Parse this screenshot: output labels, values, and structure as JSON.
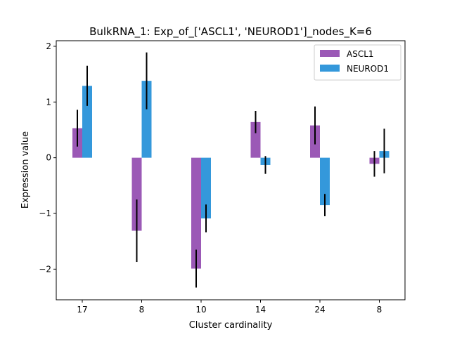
{
  "chart_data": {
    "type": "bar",
    "title": "BulkRNA_1: Exp_of_['ASCL1', 'NEUROD1']_nodes_K=6",
    "xlabel": "Cluster cardinality",
    "ylabel": "Expression value",
    "categories": [
      "17",
      "8",
      "10",
      "14",
      "24",
      "8"
    ],
    "ylim": [
      -2.55,
      2.1
    ],
    "yticks": [
      -2,
      -1,
      0,
      1,
      2
    ],
    "ytick_labels": [
      "−2",
      "−1",
      "0",
      "1",
      "2"
    ],
    "legend_position": "top-right",
    "grid": false,
    "series": [
      {
        "name": "ASCL1",
        "color": "#9b59b6",
        "values": [
          0.53,
          -1.31,
          -1.99,
          0.64,
          0.58,
          -0.11
        ],
        "errors": [
          0.33,
          0.56,
          0.34,
          0.2,
          0.34,
          0.23
        ]
      },
      {
        "name": "NEUROD1",
        "color": "#3498db",
        "values": [
          1.29,
          1.38,
          -1.09,
          -0.13,
          -0.85,
          0.12
        ],
        "errors": [
          0.36,
          0.51,
          0.25,
          0.16,
          0.2,
          0.4
        ]
      }
    ]
  }
}
